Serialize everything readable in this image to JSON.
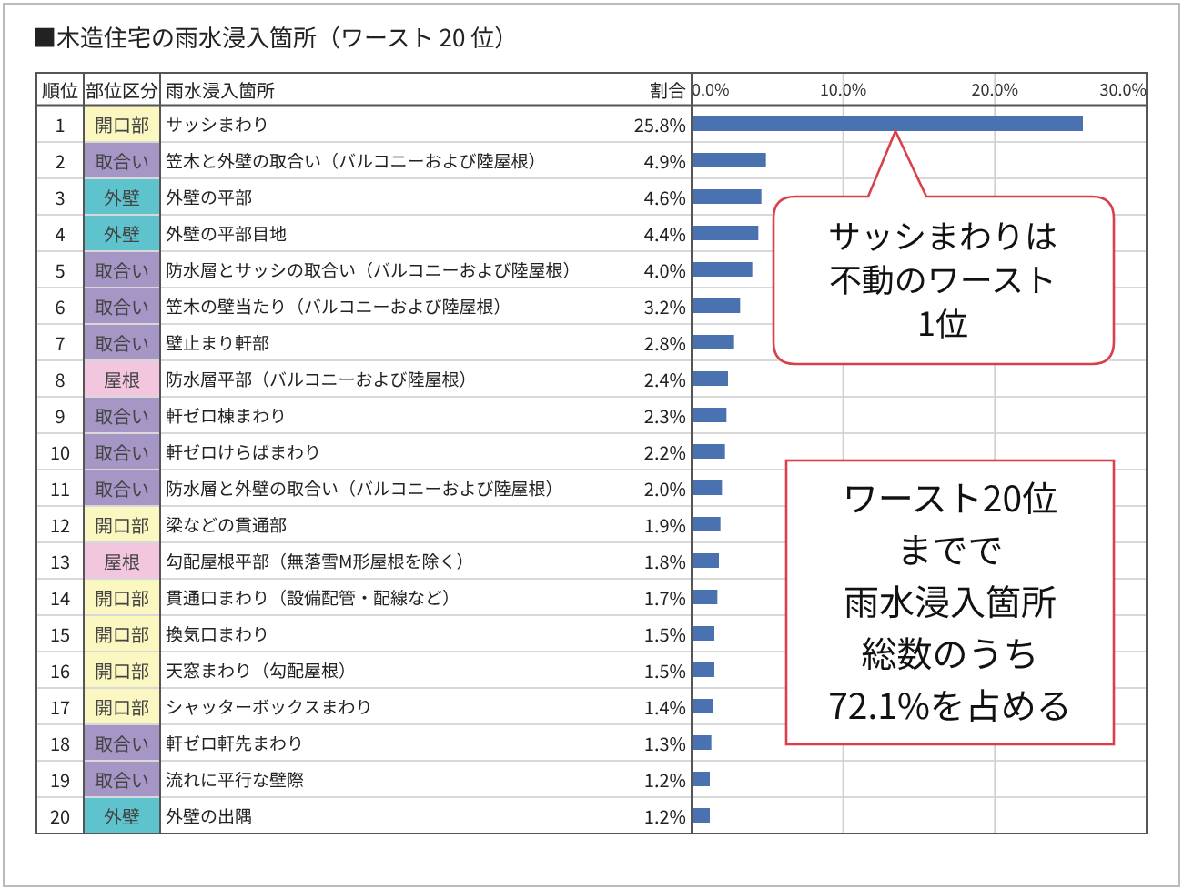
{
  "chart_data": {
    "type": "bar",
    "orientation": "horizontal",
    "title": "■木造住宅の雨水浸入箇所（ワースト 20 位）",
    "categories": [
      "サッシまわり",
      "笠木と外壁の取合い（バルコニーおよび陸屋根）",
      "外壁の平部",
      "外壁の平部目地",
      "防水層とサッシの取合い（バルコニーおよび陸屋根）",
      "笠木の壁当たり（バルコニーおよび陸屋根）",
      "壁止まり軒部",
      "防水層平部（バルコニーおよび陸屋根）",
      "軒ゼロ棟まわり",
      "軒ゼロけらばまわり",
      "防水層と外壁の取合い（バルコニーおよび陸屋根）",
      "梁などの貫通部",
      "勾配屋根平部（無落雪M形屋根を除く）",
      "貫通口まわり（設備配管・配線など）",
      "換気口まわり",
      "天窓まわり（勾配屋根）",
      "シャッターボックスまわり",
      "軒ゼロ軒先まわり",
      "流れに平行な壁際",
      "外壁の出隅"
    ],
    "values": [
      25.8,
      4.9,
      4.6,
      4.4,
      4.0,
      3.2,
      2.8,
      2.4,
      2.3,
      2.2,
      2.0,
      1.9,
      1.8,
      1.7,
      1.5,
      1.5,
      1.4,
      1.3,
      1.2,
      1.2
    ],
    "value_labels": [
      "25.8%",
      "4.9%",
      "4.6%",
      "4.4%",
      "4.0%",
      "3.2%",
      "2.8%",
      "2.4%",
      "2.3%",
      "2.2%",
      "2.0%",
      "1.9%",
      "1.8%",
      "1.7%",
      "1.5%",
      "1.5%",
      "1.4%",
      "1.3%",
      "1.2%",
      "1.2%"
    ],
    "color": "#4a72b0",
    "xlim": [
      0,
      30
    ],
    "xticks": [
      {
        "value": 0,
        "label": "0.0%"
      },
      {
        "value": 10,
        "label": "10.0%"
      },
      {
        "value": 20,
        "label": "20.0%"
      },
      {
        "value": 30,
        "label": "30.0%"
      }
    ],
    "grid": "x",
    "annotations": [
      "順位",
      "部位区分",
      "雨水浸入箇所",
      "割合",
      "サッシまわりは",
      "不動のワースト",
      "1位",
      "ワースト20位",
      "までで",
      "雨水浸入箇所",
      "総数のうち",
      "72.1%を占める",
      "1",
      "開口部",
      "2",
      "取合い",
      "3",
      "外壁",
      "4",
      "外壁",
      "5",
      "取合い",
      "6",
      "取合い",
      "7",
      "取合い",
      "8",
      "屋根",
      "9",
      "取合い",
      "10",
      "取合い",
      "11",
      "取合い",
      "12",
      "開口部",
      "13",
      "屋根",
      "14",
      "開口部",
      "15",
      "開口部",
      "16",
      "開口部",
      "17",
      "開口部",
      "18",
      "取合い",
      "19",
      "取合い",
      "20",
      "外壁"
    ]
  }
}
